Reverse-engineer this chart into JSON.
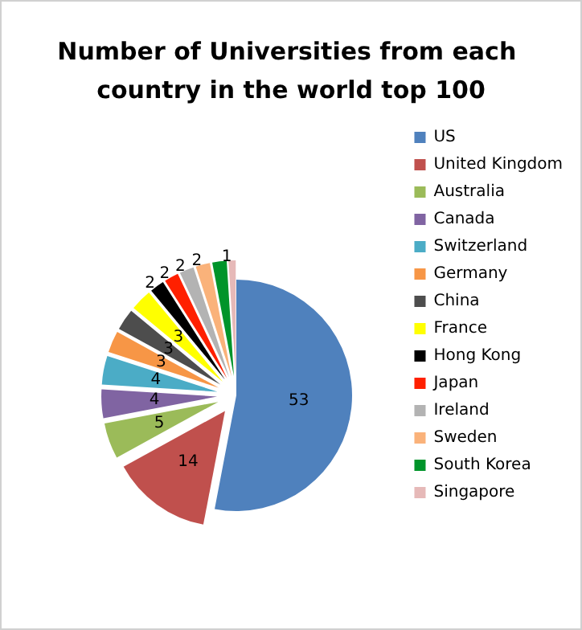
{
  "chart_data": {
    "type": "pie",
    "title": "Number of Universities from each country in the world top 100",
    "categories": [
      "US",
      "United Kingdom",
      "Australia",
      "Canada",
      "Switzerland",
      "Germany",
      "China",
      "France",
      "Hong Kong",
      "Japan",
      "Ireland",
      "Sweden",
      "South Korea",
      "Singapore"
    ],
    "values": [
      53,
      14,
      5,
      4,
      4,
      3,
      3,
      3,
      2,
      2,
      2,
      2,
      2,
      1
    ],
    "colors": [
      "#4f81bd",
      "#c0504d",
      "#9bbb59",
      "#8064a2",
      "#4bacc6",
      "#f79646",
      "#4d4d4d",
      "#ffff00",
      "#000000",
      "#ff2000",
      "#b3b3b3",
      "#fab27a",
      "#00942a",
      "#e6b9b8"
    ],
    "value_labels": [
      "53",
      "14",
      "5",
      "4",
      "4",
      "3",
      "3",
      "3",
      "2",
      "2",
      "2",
      "2",
      null,
      "1"
    ],
    "legend": "right"
  }
}
